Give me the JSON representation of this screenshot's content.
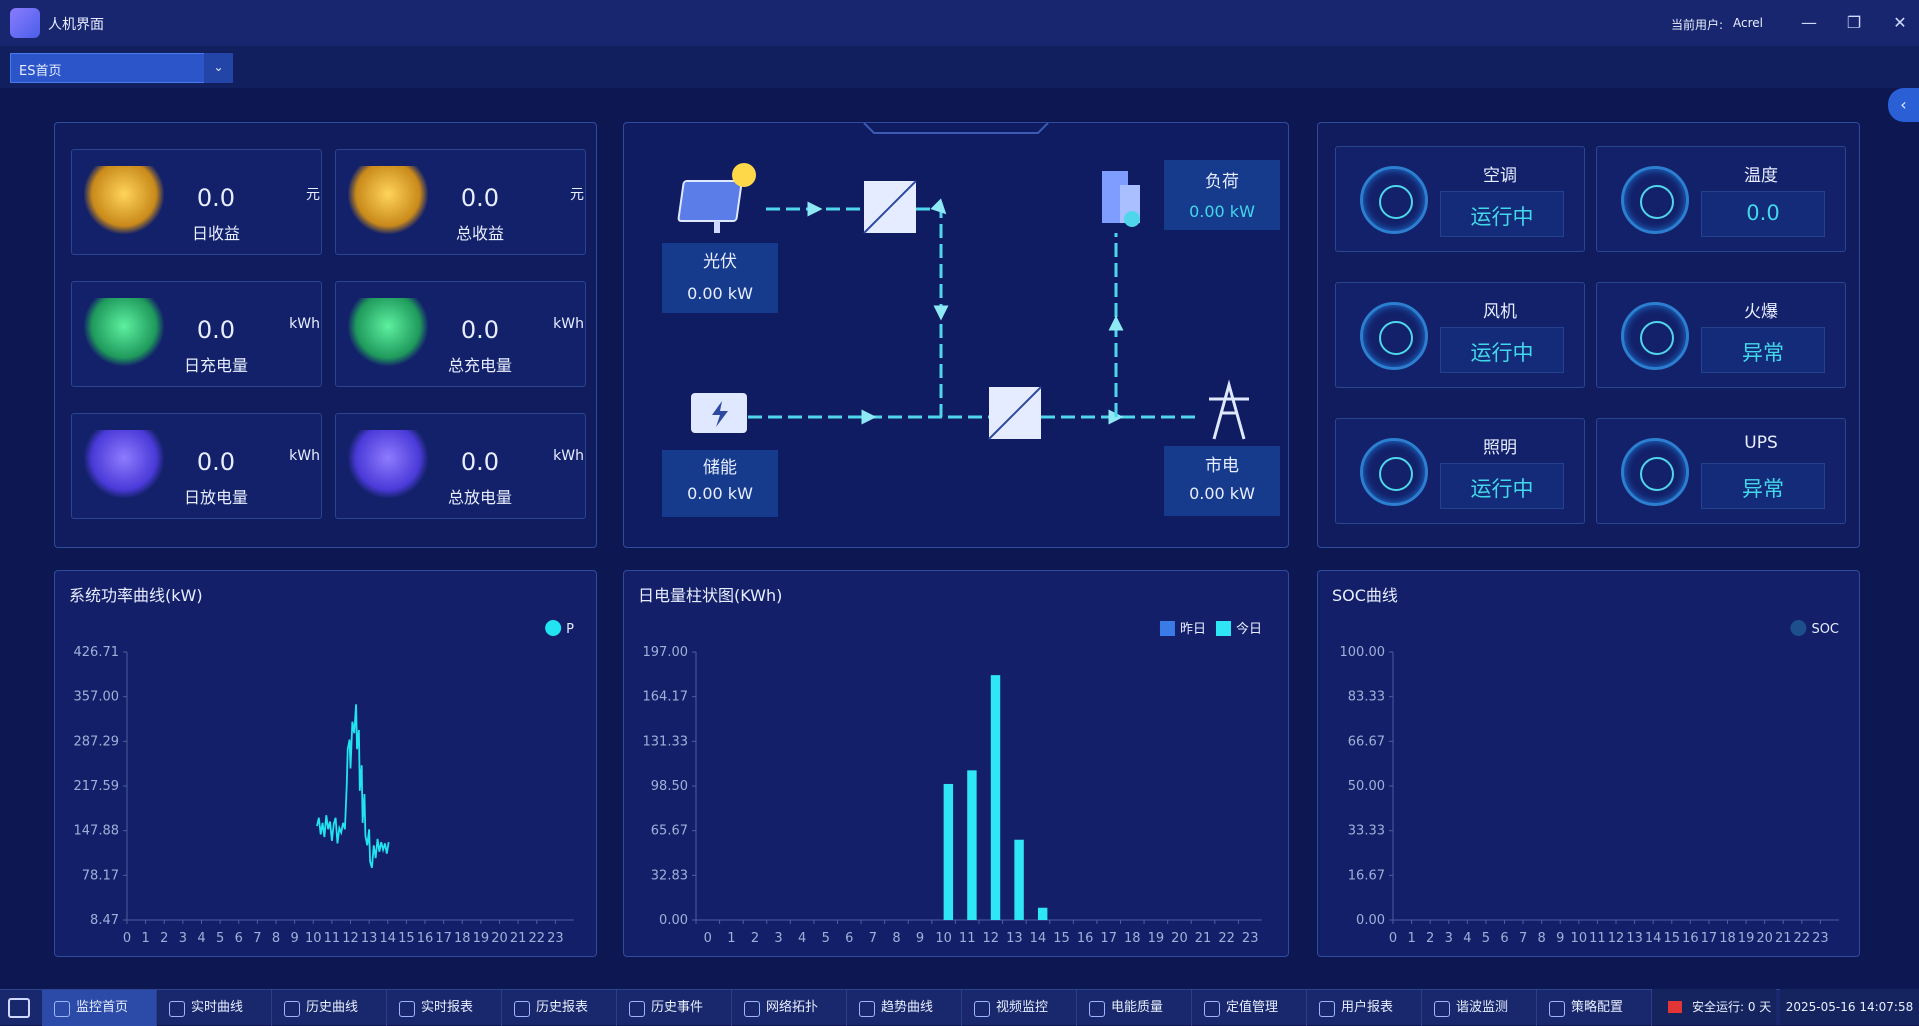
{
  "titlebar": {
    "app": "人机界面",
    "user_label": "当前用户:",
    "user": "Acrel"
  },
  "nav_select": "ES首页",
  "stats": [
    {
      "value": "0.0",
      "unit": "元",
      "label": "日收益"
    },
    {
      "value": "0.0",
      "unit": "元",
      "label": "总收益"
    },
    {
      "value": "0.0",
      "unit": "kWh",
      "label": "日充电量"
    },
    {
      "value": "0.0",
      "unit": "kWh",
      "label": "总充电量"
    },
    {
      "value": "0.0",
      "unit": "kWh",
      "label": "日放电量"
    },
    {
      "value": "0.0",
      "unit": "kWh",
      "label": "总放电量"
    }
  ],
  "flow": {
    "pv": {
      "label": "光伏",
      "value": "0.00 kW"
    },
    "storage": {
      "label": "储能",
      "value": "0.00 kW"
    },
    "load": {
      "label": "负荷",
      "value": "0.00 kW"
    },
    "grid": {
      "label": "市电",
      "value": "0.00 kW"
    }
  },
  "devices": [
    {
      "name": "空调",
      "status": "运行中"
    },
    {
      "name": "温度",
      "status": "0.0"
    },
    {
      "name": "风机",
      "status": "运行中"
    },
    {
      "name": "火爆",
      "status": "异常"
    },
    {
      "name": "照明",
      "status": "运行中"
    },
    {
      "name": "UPS",
      "status": "异常"
    }
  ],
  "chart_data": [
    {
      "type": "line",
      "title": "系统功率曲线(kW)",
      "series": [
        {
          "name": "P",
          "color": "#22e3f2",
          "x": [
            10.2,
            10.3,
            10.4,
            10.5,
            10.6,
            10.7,
            10.8,
            10.9,
            11.0,
            11.1,
            11.2,
            11.3,
            11.4,
            11.5,
            11.6,
            11.7,
            11.8,
            11.85,
            11.95,
            12.0,
            12.1,
            12.2,
            12.3,
            12.35,
            12.45,
            12.5,
            12.6,
            12.65,
            12.75,
            12.8,
            12.9,
            13.0,
            13.05,
            13.15,
            13.25,
            13.35,
            13.45,
            13.55,
            13.65,
            13.75,
            13.85,
            13.95,
            14.05
          ],
          "values": [
            155,
            168,
            142,
            160,
            138,
            172,
            150,
            162,
            132,
            158,
            168,
            128,
            152,
            145,
            160,
            150,
            220,
            275,
            290,
            245,
            318,
            300,
            345,
            275,
            305,
            210,
            250,
            160,
            205,
            140,
            125,
            150,
            100,
            90,
            125,
            105,
            135,
            115,
            130,
            118,
            128,
            112,
            130
          ]
        }
      ],
      "xlim": [
        0,
        24
      ],
      "xticks": [
        0,
        1,
        2,
        3,
        4,
        5,
        6,
        7,
        8,
        9,
        10,
        11,
        12,
        13,
        14,
        15,
        16,
        17,
        18,
        19,
        20,
        21,
        22,
        23
      ],
      "ylim": [
        8.47,
        426.71
      ],
      "yticks": [
        8.47,
        78.17,
        147.88,
        217.59,
        287.29,
        {
          "value": 357,
          "label": "357.00"
        },
        426.71
      ],
      "grid": false,
      "legend": "top-right"
    },
    {
      "type": "bar",
      "title": "日电量柱状图(KWh)",
      "categories": [
        "0",
        "1",
        "2",
        "3",
        "4",
        "5",
        "6",
        "7",
        "8",
        "9",
        "10",
        "11",
        "12",
        "13",
        "14",
        "15",
        "16",
        "17",
        "18",
        "19",
        "20",
        "21",
        "22",
        "23"
      ],
      "series": [
        {
          "name": "昨日",
          "color": "#3a7be6",
          "values": [
            null,
            null,
            null,
            null,
            null,
            null,
            null,
            null,
            null,
            null,
            null,
            null,
            null,
            null,
            null,
            null,
            null,
            null,
            null,
            null,
            null,
            null,
            null,
            null
          ]
        },
        {
          "name": "今日",
          "color": "#2ee6f5",
          "values": [
            0,
            0,
            0,
            0,
            0,
            0,
            0,
            0,
            0,
            0,
            100,
            110,
            180,
            59,
            9,
            null,
            null,
            null,
            null,
            null,
            null,
            null,
            null,
            null
          ]
        }
      ],
      "ylim": [
        0,
        197
      ],
      "yticks": [
        {
          "value": 0,
          "label": "0.00"
        },
        32.83,
        65.67,
        {
          "value": 98.5,
          "label": "98.50"
        },
        131.33,
        164.17,
        {
          "value": 197,
          "label": "197.00"
        }
      ],
      "grid": false,
      "legend": "top-right"
    },
    {
      "type": "line",
      "title": "SOC曲线",
      "series": [
        {
          "name": "SOC",
          "color": "#1d4f8c",
          "x": [],
          "values": []
        }
      ],
      "xlim": [
        0,
        24
      ],
      "xticks": [
        0,
        1,
        2,
        3,
        4,
        5,
        6,
        7,
        8,
        9,
        10,
        11,
        12,
        13,
        14,
        15,
        16,
        17,
        18,
        19,
        20,
        21,
        22,
        23
      ],
      "ylim": [
        0,
        100
      ],
      "yticks": [
        {
          "value": 0,
          "label": "0.00"
        },
        16.67,
        33.33,
        {
          "value": 50,
          "label": "50.00"
        },
        66.67,
        83.33,
        {
          "value": 100,
          "label": "100.00"
        }
      ],
      "grid": false,
      "legend": "top-right"
    }
  ],
  "taskbar": {
    "items": [
      "监控首页",
      "实时曲线",
      "历史曲线",
      "实时报表",
      "历史报表",
      "历史事件",
      "网络拓扑",
      "趋势曲线",
      "视频监控",
      "电能质量",
      "定值管理",
      "用户报表",
      "谐波监测",
      "策略配置"
    ],
    "status": "安全运行: 0 天",
    "datetime": "2025-05-16 14:07:58"
  }
}
